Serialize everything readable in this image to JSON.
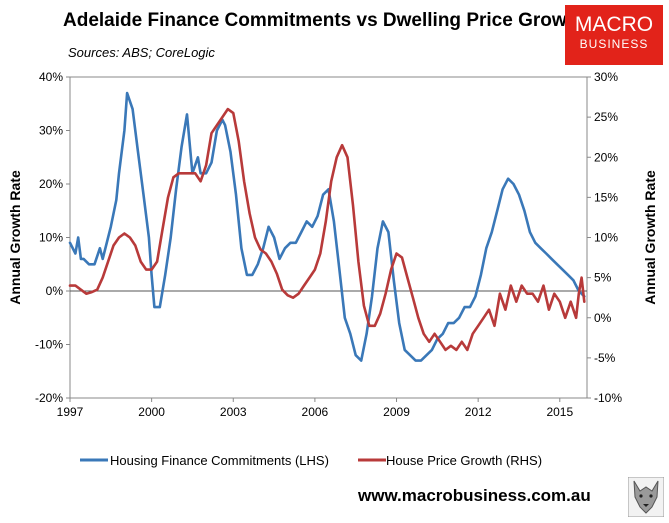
{
  "header": {
    "title": "Adelaide Finance Commitments vs Dwelling Price Growth",
    "sources": "Sources: ABS; CoreLogic"
  },
  "logo": {
    "line1": "MACRO",
    "line2": "BUSINESS",
    "color": "#e2231a"
  },
  "footer": {
    "website": "www.macrobusiness.com.au"
  },
  "chart_data": {
    "type": "line",
    "title": "Adelaide Finance Commitments vs Dwelling Price Growth",
    "ylabel_left": "Annual Growth Rate",
    "ylabel_right": "Annual Growth Rate",
    "xlim": [
      1997,
      2016
    ],
    "ylim_left": [
      -20,
      40
    ],
    "ylim_right": [
      -10,
      30
    ],
    "x_ticks": [
      1997,
      2000,
      2003,
      2006,
      2009,
      2012,
      2015
    ],
    "x_tick_labels": [
      "1997",
      "2000",
      "2003",
      "2006",
      "2009",
      "2012",
      "2015"
    ],
    "y_left_ticks": [
      -20,
      -10,
      0,
      10,
      20,
      30,
      40
    ],
    "y_left_tick_labels": [
      "-20%",
      "-10%",
      "0%",
      "10%",
      "20%",
      "30%",
      "40%"
    ],
    "y_right_ticks": [
      -10,
      -5,
      0,
      5,
      10,
      15,
      20,
      25,
      30
    ],
    "y_right_tick_labels": [
      "-10%",
      "-5%",
      "0%",
      "5%",
      "10%",
      "15%",
      "20%",
      "25%",
      "30%"
    ],
    "legend_position": "bottom",
    "series": [
      {
        "name": "Housing Finance Commitments (LHS)",
        "axis": "left",
        "color": "#3a78b8",
        "x": [
          1997.0,
          1997.2,
          1997.3,
          1997.4,
          1997.5,
          1997.7,
          1997.9,
          1998.1,
          1998.2,
          1998.4,
          1998.5,
          1998.7,
          1998.8,
          1999.0,
          1999.1,
          1999.3,
          1999.5,
          1999.7,
          1999.9,
          2000.0,
          2000.1,
          2000.3,
          2000.5,
          2000.7,
          2000.9,
          2001.1,
          2001.3,
          2001.5,
          2001.7,
          2001.8,
          2002.0,
          2002.2,
          2002.4,
          2002.6,
          2002.7,
          2002.9,
          2003.1,
          2003.3,
          2003.5,
          2003.7,
          2003.9,
          2004.1,
          2004.3,
          2004.5,
          2004.7,
          2004.9,
          2005.1,
          2005.3,
          2005.5,
          2005.7,
          2005.9,
          2006.1,
          2006.3,
          2006.5,
          2006.7,
          2006.9,
          2007.1,
          2007.3,
          2007.5,
          2007.7,
          2007.9,
          2008.1,
          2008.3,
          2008.5,
          2008.7,
          2008.9,
          2009.1,
          2009.3,
          2009.5,
          2009.7,
          2009.9,
          2010.1,
          2010.3,
          2010.5,
          2010.7,
          2010.9,
          2011.1,
          2011.3,
          2011.5,
          2011.7,
          2011.9,
          2012.1,
          2012.3,
          2012.5,
          2012.7,
          2012.9,
          2013.1,
          2013.3,
          2013.5,
          2013.7,
          2013.9,
          2014.1,
          2014.3,
          2014.5,
          2014.7,
          2014.9,
          2015.1,
          2015.3,
          2015.5,
          2015.7,
          2015.9
        ],
        "values": [
          9,
          7,
          10,
          6,
          6,
          5,
          5,
          8,
          6,
          10,
          12,
          17,
          22,
          30,
          37,
          34,
          26,
          18,
          10,
          3,
          -3,
          -3,
          3,
          10,
          19,
          27,
          33,
          22,
          25,
          22,
          22,
          24,
          30,
          32,
          31,
          26,
          18,
          8,
          3,
          3,
          5,
          8,
          12,
          10,
          6,
          8,
          9,
          9,
          11,
          13,
          12,
          14,
          18,
          19,
          13,
          4,
          -5,
          -8,
          -12,
          -13,
          -8,
          -1,
          8,
          13,
          11,
          2,
          -6,
          -11,
          -12,
          -13,
          -13,
          -12,
          -11,
          -9,
          -8,
          -6,
          -6,
          -5,
          -3,
          -3,
          -1,
          3,
          8,
          11,
          15,
          19,
          21,
          20,
          18,
          15,
          11,
          9,
          8,
          7,
          6,
          5,
          4,
          3,
          2,
          0,
          -1
        ]
      },
      {
        "name": "House Price Growth (RHS)",
        "axis": "right",
        "color": "#b83a3a",
        "x": [
          1997.0,
          1997.2,
          1997.4,
          1997.6,
          1997.8,
          1998.0,
          1998.2,
          1998.4,
          1998.6,
          1998.8,
          1999.0,
          1999.2,
          1999.4,
          1999.6,
          1999.8,
          2000.0,
          2000.2,
          2000.4,
          2000.6,
          2000.8,
          2001.0,
          2001.2,
          2001.4,
          2001.6,
          2001.8,
          2002.0,
          2002.2,
          2002.4,
          2002.6,
          2002.8,
          2003.0,
          2003.2,
          2003.4,
          2003.6,
          2003.8,
          2004.0,
          2004.2,
          2004.4,
          2004.6,
          2004.8,
          2005.0,
          2005.2,
          2005.4,
          2005.6,
          2005.8,
          2006.0,
          2006.2,
          2006.4,
          2006.6,
          2006.8,
          2007.0,
          2007.2,
          2007.4,
          2007.6,
          2007.8,
          2008.0,
          2008.2,
          2008.4,
          2008.6,
          2008.8,
          2009.0,
          2009.2,
          2009.4,
          2009.6,
          2009.8,
          2010.0,
          2010.2,
          2010.4,
          2010.6,
          2010.8,
          2011.0,
          2011.2,
          2011.4,
          2011.6,
          2011.8,
          2012.0,
          2012.2,
          2012.4,
          2012.6,
          2012.8,
          2013.0,
          2013.2,
          2013.4,
          2013.6,
          2013.8,
          2014.0,
          2014.2,
          2014.4,
          2014.6,
          2014.8,
          2015.0,
          2015.2,
          2015.4,
          2015.6,
          2015.7,
          2015.8,
          2015.9
        ],
        "values": [
          4,
          4,
          3.5,
          3,
          3.2,
          3.5,
          5,
          7,
          9,
          10,
          10.5,
          10,
          9,
          7,
          6,
          6,
          7,
          11,
          15,
          17.5,
          18,
          18,
          18,
          18,
          17,
          19,
          23,
          24,
          25,
          26,
          25.5,
          22,
          17,
          13,
          10,
          8.5,
          8,
          7,
          5.5,
          3.5,
          2.8,
          2.5,
          3,
          4,
          5,
          6,
          8,
          12,
          17,
          20,
          21.5,
          20,
          14,
          7,
          1.5,
          -1,
          -1,
          0.5,
          3,
          6,
          8,
          7.5,
          5,
          2.5,
          0,
          -2,
          -3,
          -2,
          -3,
          -4,
          -3.5,
          -4,
          -3,
          -4,
          -2,
          -1,
          0,
          1,
          -1,
          3,
          1,
          4,
          2,
          4,
          3,
          3,
          2,
          4,
          1,
          3,
          2,
          0,
          2,
          0,
          3,
          5,
          2
        ]
      }
    ]
  }
}
